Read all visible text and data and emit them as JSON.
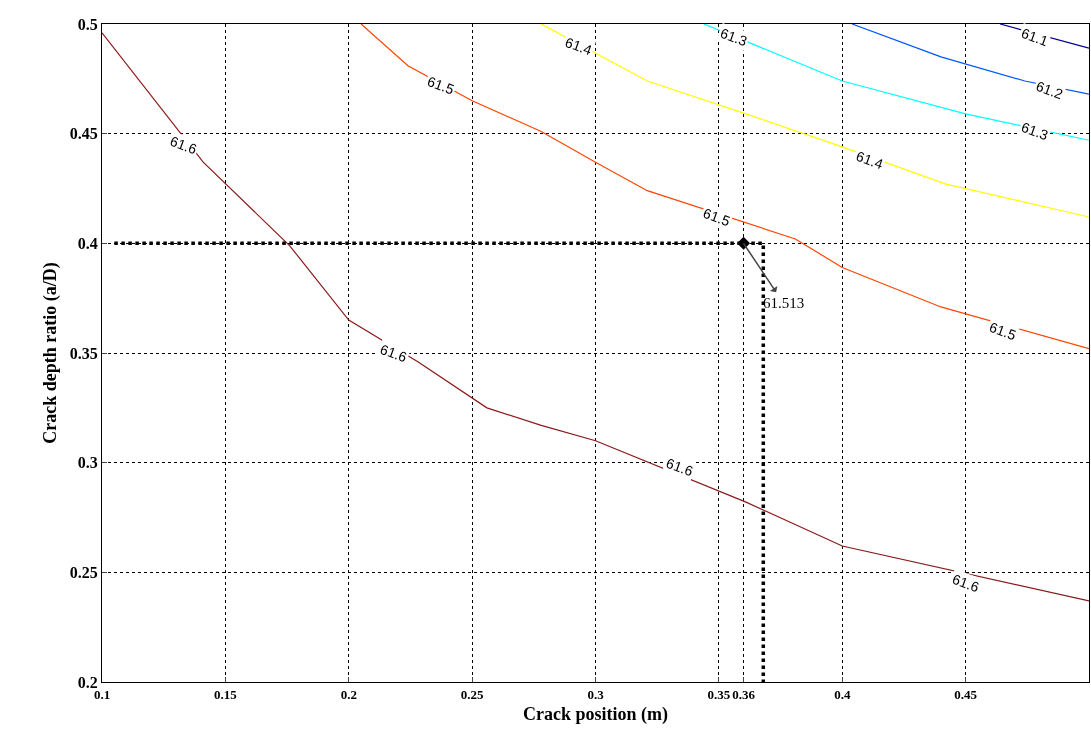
{
  "chart_data": {
    "type": "line",
    "xlabel": "Crack position (m)",
    "ylabel": "Crack depth ratio (a/D)",
    "xlim": [
      0.1,
      0.5
    ],
    "ylim": [
      0.2,
      0.5
    ],
    "xticks": [
      0.1,
      0.15,
      0.2,
      0.25,
      0.3,
      0.35,
      0.36,
      0.4,
      0.45
    ],
    "yticks": [
      0.2,
      0.25,
      0.3,
      0.35,
      0.4,
      0.45,
      0.5
    ],
    "grid": true,
    "series": [
      {
        "color": "#8b1a1a",
        "x": [
          0.1,
          0.141,
          0.176,
          0.2,
          0.228,
          0.256,
          0.278,
          0.3,
          0.361,
          0.4,
          0.5
        ],
        "values": [
          0.496,
          0.437,
          0.399,
          0.365,
          0.346,
          0.325,
          0.317,
          0.31,
          0.282,
          0.262,
          0.237
        ]
      },
      {
        "color": "#ff4500",
        "x": [
          0.205,
          0.224,
          0.25,
          0.278,
          0.3,
          0.321,
          0.381,
          0.4,
          0.44,
          0.5
        ],
        "values": [
          0.5,
          0.481,
          0.465,
          0.451,
          0.437,
          0.424,
          0.402,
          0.389,
          0.371,
          0.352
        ]
      },
      {
        "color": "#ffff00",
        "x": [
          0.278,
          0.321,
          0.361,
          0.4,
          0.442,
          0.5
        ],
        "values": [
          0.5,
          0.474,
          0.459,
          0.444,
          0.427,
          0.412
        ]
      },
      {
        "color": "#00ffff",
        "x": [
          0.344,
          0.4,
          0.45,
          0.5
        ],
        "values": [
          0.5,
          0.474,
          0.459,
          0.447
        ]
      },
      {
        "color": "#0055ff",
        "x": [
          0.404,
          0.44,
          0.474,
          0.5
        ],
        "values": [
          0.5,
          0.485,
          0.474,
          0.468
        ]
      },
      {
        "color": "#00008b",
        "x": [
          0.464,
          0.5
        ],
        "values": [
          0.5,
          0.489
        ]
      },
      {
        "color": "#000000",
        "line_style": "dotted",
        "x": [
          0.105,
          0.368,
          0.368
        ],
        "values": [
          0.4,
          0.4,
          0.2
        ]
      },
      {
        "type": "scatter",
        "color": "#000000",
        "marker": "diamond",
        "x": [
          0.36
        ],
        "values": [
          0.4
        ]
      }
    ],
    "annotations": [
      {
        "text": "61.6",
        "x": 0.133,
        "y": 0.445
      },
      {
        "text": "61.6",
        "x": 0.218,
        "y": 0.35
      },
      {
        "text": "61.6",
        "x": 0.334,
        "y": 0.298
      },
      {
        "text": "61.6",
        "x": 0.45,
        "y": 0.245
      },
      {
        "text": "61.5",
        "x": 0.237,
        "y": 0.472
      },
      {
        "text": "61.5",
        "x": 0.349,
        "y": 0.412
      },
      {
        "text": "61.5",
        "x": 0.465,
        "y": 0.36
      },
      {
        "text": "61.4",
        "x": 0.293,
        "y": 0.49
      },
      {
        "text": "61.4",
        "x": 0.411,
        "y": 0.438
      },
      {
        "text": "61.3",
        "x": 0.356,
        "y": 0.494
      },
      {
        "text": "61.3",
        "x": 0.478,
        "y": 0.451
      },
      {
        "text": "61.2",
        "x": 0.484,
        "y": 0.47
      },
      {
        "text": "61.1",
        "x": 0.478,
        "y": 0.494
      },
      {
        "text": "61.513",
        "x": 0.36,
        "y": 0.4
      }
    ]
  }
}
